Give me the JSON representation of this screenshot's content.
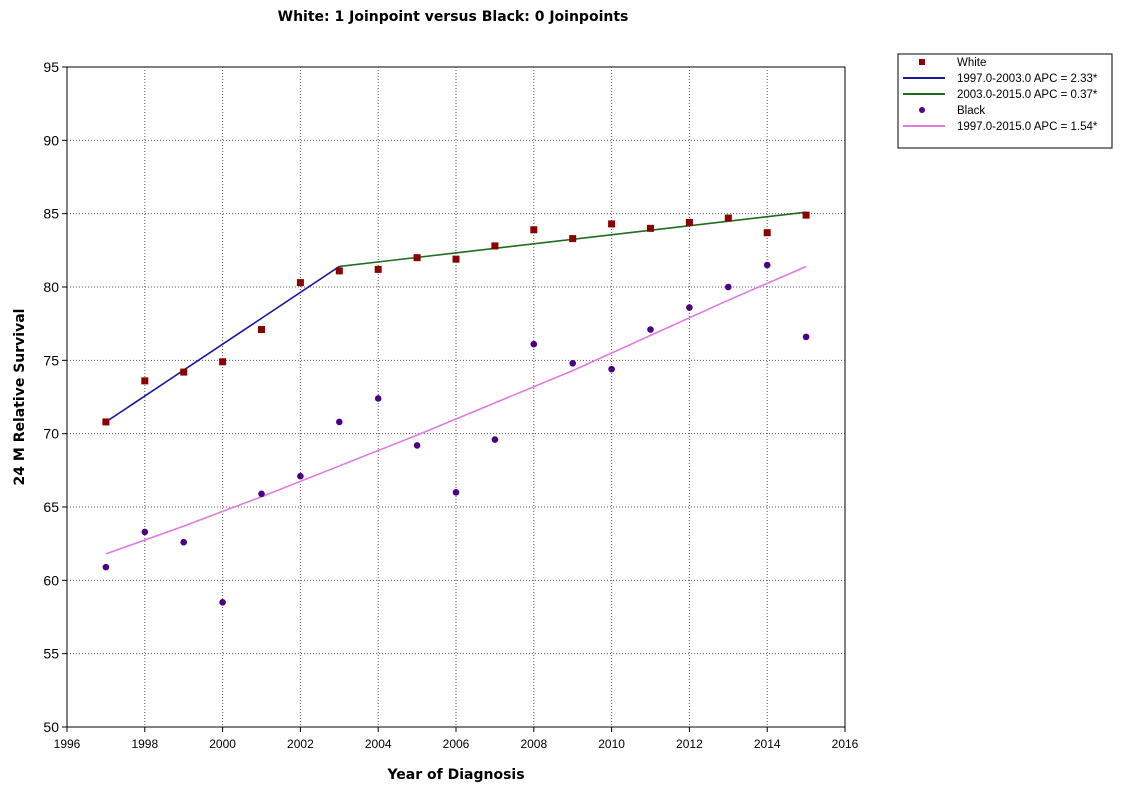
{
  "chart_data": {
    "type": "scatter",
    "title": "White: 1 Joinpoint  versus  Black: 0 Joinpoints",
    "xlabel": "Year of Diagnosis",
    "ylabel": "24 M Relative Survival",
    "xlim": [
      1996,
      2016
    ],
    "ylim": [
      50,
      95
    ],
    "xticks": [
      1996,
      1998,
      2000,
      2002,
      2004,
      2006,
      2008,
      2010,
      2012,
      2014,
      2016
    ],
    "yticks": [
      50,
      55,
      60,
      65,
      70,
      75,
      80,
      85,
      90,
      95
    ],
    "grid": true,
    "legend_position": "top-right, outside plot",
    "series": [
      {
        "name": "White",
        "kind": "points",
        "marker": "square",
        "color": "#8b0000",
        "x": [
          1997,
          1998,
          1999,
          2000,
          2001,
          2002,
          2003,
          2004,
          2005,
          2006,
          2007,
          2008,
          2009,
          2010,
          2011,
          2012,
          2013,
          2014,
          2015
        ],
        "y": [
          70.8,
          73.6,
          74.2,
          74.9,
          77.1,
          80.3,
          81.1,
          81.2,
          82.0,
          81.9,
          82.8,
          83.9,
          83.3,
          84.3,
          84.0,
          84.4,
          84.7,
          83.7,
          84.9
        ]
      },
      {
        "name": "1997.0-2003.0 APC  = 2.33*",
        "kind": "line",
        "color": "#1a1a9c",
        "x": [
          1997,
          2003
        ],
        "y": [
          70.8,
          81.4
        ]
      },
      {
        "name": "2003.0-2015.0 APC  = 0.37*",
        "kind": "line",
        "color": "#1f6b1f",
        "x": [
          2003,
          2015
        ],
        "y": [
          81.4,
          85.1
        ]
      },
      {
        "name": "Black",
        "kind": "points",
        "marker": "circle",
        "color": "#4b0082",
        "x": [
          1997,
          1998,
          1999,
          2000,
          2001,
          2002,
          2003,
          2004,
          2005,
          2006,
          2007,
          2008,
          2009,
          2010,
          2011,
          2012,
          2013,
          2014,
          2015
        ],
        "y": [
          60.9,
          63.3,
          62.6,
          58.5,
          65.9,
          67.1,
          70.8,
          72.4,
          69.2,
          66.0,
          69.6,
          76.1,
          74.8,
          74.4,
          77.1,
          78.6,
          80.0,
          81.5,
          76.6
        ]
      },
      {
        "name": "1997.0-2015.0 APC  = 1.54*",
        "kind": "line",
        "color": "#e07ae0",
        "x": [
          1997,
          1999,
          2001,
          2003,
          2005,
          2007,
          2009,
          2011,
          2013,
          2015
        ],
        "y": [
          61.8,
          63.7,
          65.7,
          67.8,
          69.9,
          72.1,
          74.3,
          76.7,
          79.1,
          81.4
        ]
      }
    ]
  }
}
